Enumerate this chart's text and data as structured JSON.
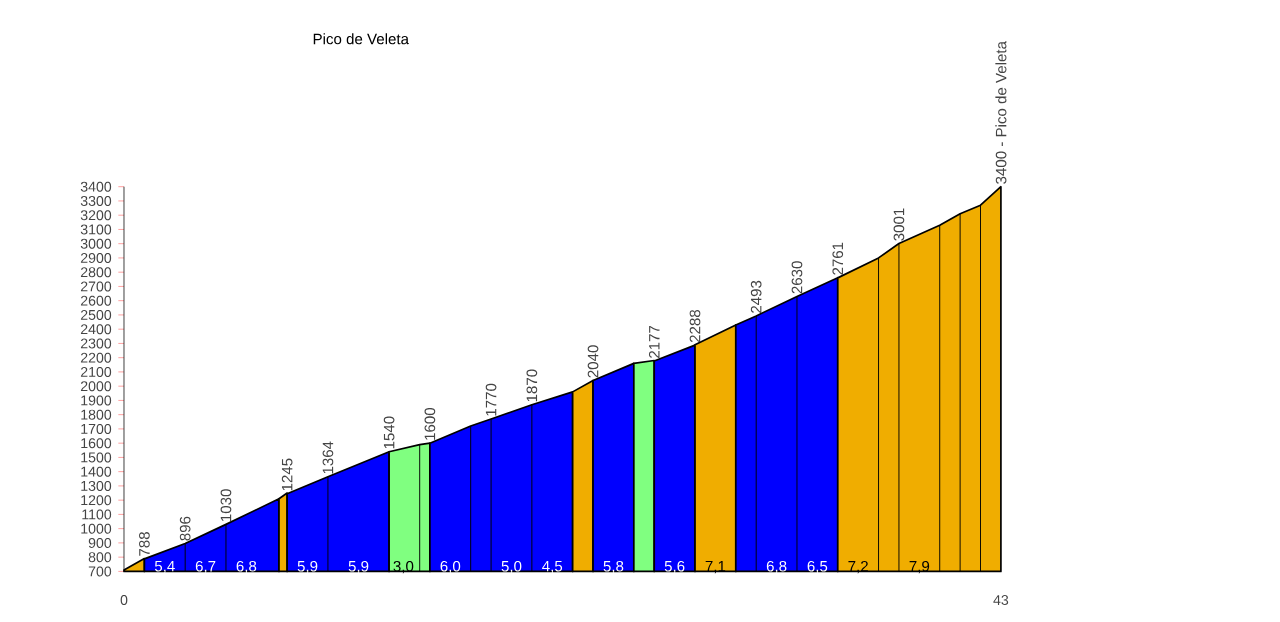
{
  "chart_data": {
    "type": "area",
    "title": "Pico de Veleta",
    "xlim": [
      0,
      43
    ],
    "xticks": [
      0,
      43
    ],
    "ylim": [
      700,
      3400
    ],
    "yticks": [
      700,
      800,
      900,
      1000,
      1100,
      1200,
      1300,
      1400,
      1500,
      1600,
      1700,
      1800,
      1900,
      2000,
      2100,
      2200,
      2300,
      2400,
      2500,
      2600,
      2700,
      2800,
      2900,
      3000,
      3100,
      3200,
      3300,
      3400
    ],
    "grid": false,
    "marker": "none",
    "series": [
      {
        "color": "#f0ad00",
        "x": [
          0,
          1
        ],
        "values": [
          710,
          790
        ]
      },
      {
        "color": "#0000ff",
        "x": [
          1,
          3,
          5,
          7.6
        ],
        "values": [
          788,
          896,
          1030,
          1210
        ],
        "value_labels": [
          "788",
          "896",
          "1030",
          null
        ]
      },
      {
        "color": "#f0ad00",
        "x": [
          7.6,
          8
        ],
        "values": [
          1210,
          1250
        ]
      },
      {
        "color": "#0000ff",
        "x": [
          8,
          10,
          13
        ],
        "values": [
          1245,
          1364,
          1540
        ],
        "value_labels": [
          "1245",
          "1364",
          null
        ]
      },
      {
        "color": "#80ff80",
        "x": [
          13,
          14.5,
          15
        ],
        "values": [
          1540,
          1590,
          1600
        ],
        "value_labels": [
          "1540",
          null,
          null
        ]
      },
      {
        "color": "#0000ff",
        "x": [
          15,
          17,
          18,
          20,
          22
        ],
        "values": [
          1600,
          1720,
          1770,
          1870,
          1960
        ],
        "value_labels": [
          "1600",
          null,
          "1770",
          "1870",
          null
        ]
      },
      {
        "color": "#f0ad00",
        "x": [
          22,
          23
        ],
        "values": [
          1960,
          2040
        ]
      },
      {
        "color": "#0000ff",
        "x": [
          23,
          25
        ],
        "values": [
          2040,
          2160
        ],
        "value_labels": [
          "2040",
          null
        ]
      },
      {
        "color": "#80ff80",
        "x": [
          25,
          26
        ],
        "values": [
          2160,
          2180
        ]
      },
      {
        "color": "#0000ff",
        "x": [
          26,
          28
        ],
        "values": [
          2177,
          2288
        ],
        "value_labels": [
          "2177",
          "2288"
        ]
      },
      {
        "color": "#f0ad00",
        "x": [
          28,
          30
        ],
        "values": [
          2290,
          2430
        ]
      },
      {
        "color": "#0000ff",
        "x": [
          30,
          31,
          33,
          35
        ],
        "values": [
          2430,
          2493,
          2630,
          2761
        ],
        "value_labels": [
          null,
          "2493",
          "2630",
          "2761"
        ]
      },
      {
        "color": "#f0ad00",
        "x": [
          35,
          37,
          38,
          40,
          41,
          42,
          43
        ],
        "values": [
          2760,
          2900,
          3001,
          3130,
          3210,
          3270,
          3400
        ],
        "value_labels": [
          null,
          null,
          "3001",
          null,
          null,
          null,
          "3400 - Pico de Veleta"
        ]
      }
    ],
    "annotations": [
      {
        "text": "5,4",
        "x": 2,
        "y": 730
      },
      {
        "text": "6,7",
        "x": 4,
        "y": 730
      },
      {
        "text": "6,8",
        "x": 6,
        "y": 730
      },
      {
        "text": "5,9",
        "x": 9,
        "y": 730
      },
      {
        "text": "5,9",
        "x": 11.5,
        "y": 730
      },
      {
        "text": "3,0",
        "x": 13.7,
        "y": 730
      },
      {
        "text": "6,0",
        "x": 16,
        "y": 730
      },
      {
        "text": "5,0",
        "x": 19,
        "y": 730
      },
      {
        "text": "4,5",
        "x": 21,
        "y": 730
      },
      {
        "text": "5,8",
        "x": 24,
        "y": 730
      },
      {
        "text": "5,6",
        "x": 27,
        "y": 730
      },
      {
        "text": "7,1",
        "x": 29,
        "y": 730
      },
      {
        "text": "6,8",
        "x": 32,
        "y": 730
      },
      {
        "text": "6,5",
        "x": 34,
        "y": 730
      },
      {
        "text": "7,2",
        "x": 36,
        "y": 730
      },
      {
        "text": "7,9",
        "x": 39,
        "y": 730
      }
    ]
  }
}
